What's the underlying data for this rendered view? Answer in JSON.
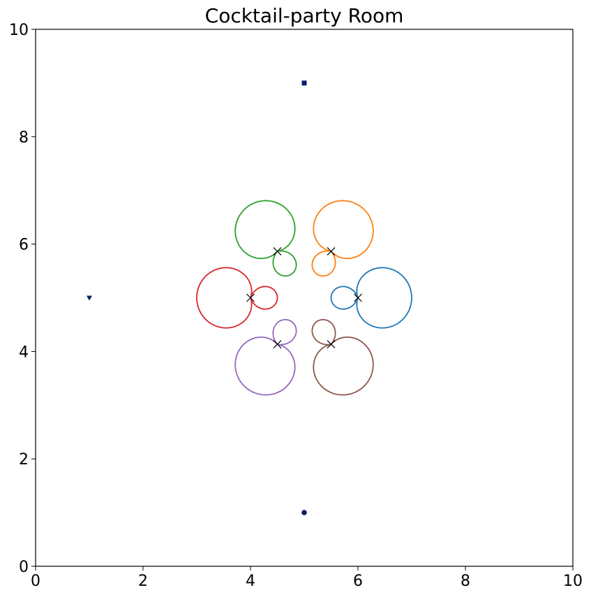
{
  "chart_data": {
    "type": "line",
    "title": "Cocktail-party Room",
    "xlabel": "",
    "ylabel": "",
    "xlim": [
      0,
      10
    ],
    "ylim": [
      0,
      10
    ],
    "x_ticks": [
      0,
      2,
      4,
      6,
      8,
      10
    ],
    "y_ticks": [
      0,
      2,
      4,
      6,
      8,
      10
    ],
    "grid": false,
    "legend": "none",
    "series": [
      {
        "color": "#1f77b4",
        "mic": [
          6.0,
          5.0
        ],
        "angle_deg": 0
      },
      {
        "color": "#ff7f0e",
        "mic": [
          5.5,
          5.866
        ],
        "angle_deg": 60
      },
      {
        "color": "#2ca02c",
        "mic": [
          4.5,
          5.866
        ],
        "angle_deg": 120
      },
      {
        "color": "#d62728",
        "mic": [
          4.0,
          5.0
        ],
        "angle_deg": 180
      },
      {
        "color": "#9467bd",
        "mic": [
          4.5,
          4.134
        ],
        "angle_deg": 240
      },
      {
        "color": "#8c564b",
        "mic": [
          5.5,
          4.134
        ],
        "angle_deg": 300
      }
    ],
    "sources": [
      {
        "shape": "square",
        "x": 5.0,
        "y": 9.0,
        "color": "#0b1f66"
      },
      {
        "shape": "triangle-down",
        "x": 1.0,
        "y": 5.0,
        "color": "#0b1f66"
      },
      {
        "shape": "circle",
        "x": 5.0,
        "y": 1.0,
        "color": "#0b1f66"
      }
    ],
    "mic_marker": {
      "shape": "x",
      "color": "#000000"
    }
  }
}
